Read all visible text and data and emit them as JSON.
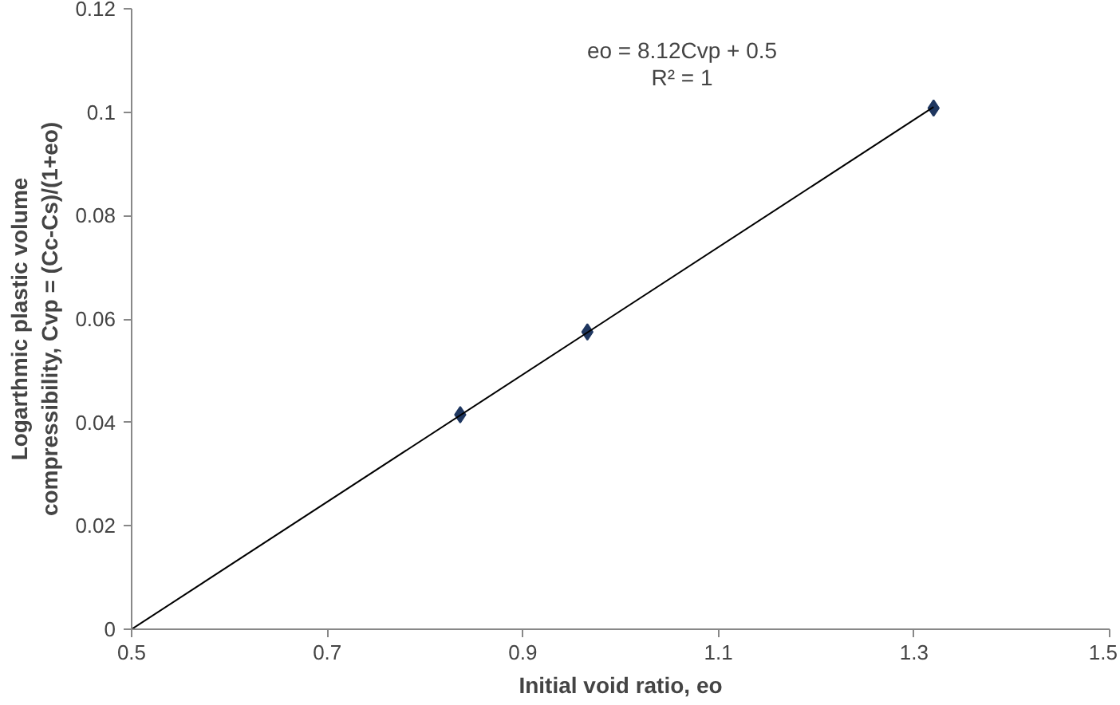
{
  "chart_data": {
    "type": "scatter",
    "xlabel": "Initial void ratio, eo",
    "ylabel": "Logarthmic plastic volume\ncompressibility, Cvp = (Cc-Cs)/(1+eo)",
    "x": [
      0.836,
      0.966,
      1.32
    ],
    "series": [
      {
        "color": "#1f3760",
        "values": [
          0.0415,
          0.0575,
          0.1008
        ],
        "marker": "diamond"
      },
      {
        "type": "line",
        "color": "#000000",
        "x": [
          0.5,
          1.32
        ],
        "values": [
          0,
          0.101
        ],
        "marker": "none"
      }
    ],
    "annotations": [
      "eo = 8.12Cvp + 0.5",
      "R² = 1"
    ],
    "xlim": [
      0.5,
      1.5
    ],
    "xticks": [
      0.5,
      0.7,
      0.9,
      1.1,
      1.3,
      1.5
    ],
    "ylim": [
      0,
      0.12
    ],
    "yticks": [
      0,
      0.02,
      0.04,
      0.06,
      0.08,
      0.1,
      0.12
    ],
    "grid": false
  }
}
